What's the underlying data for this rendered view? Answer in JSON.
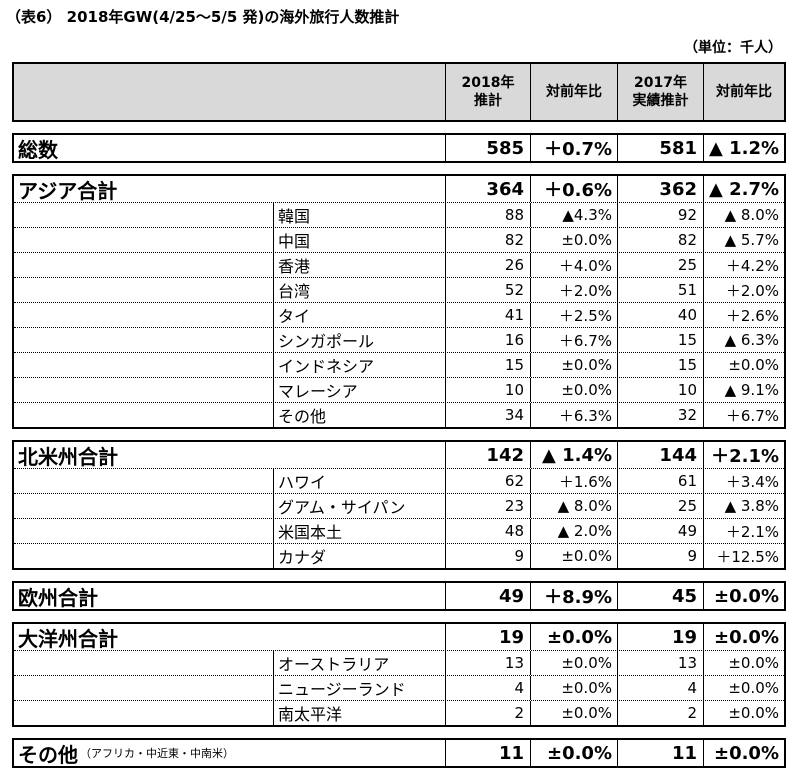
{
  "title": "（表6） 2018年GW(4/25～5/5 発)の海外旅行人数推計",
  "unit": "（単位：千人）",
  "header": {
    "c1": [
      "2018年",
      "推計"
    ],
    "c2": "対前年比",
    "c3": [
      "2017年",
      "実績推計"
    ],
    "c4": "対前年比"
  },
  "total": {
    "name": "総数",
    "v2018": "585",
    "yoy2018": "＋0.7%",
    "v2017": "581",
    "yoy2017": "▲ 1.2%"
  },
  "asia": {
    "name": "アジア合計",
    "v2018": "364",
    "yoy2018": "＋0.6%",
    "v2017": "362",
    "yoy2017": "▲ 2.7%",
    "items": [
      {
        "name": "韓国",
        "v2018": "88",
        "yoy2018": "▲4.3%",
        "v2017": "92",
        "yoy2017": "▲ 8.0%"
      },
      {
        "name": "中国",
        "v2018": "82",
        "yoy2018": "±0.0%",
        "v2017": "82",
        "yoy2017": "▲ 5.7%"
      },
      {
        "name": "香港",
        "v2018": "26",
        "yoy2018": "＋4.0%",
        "v2017": "25",
        "yoy2017": "＋4.2%"
      },
      {
        "name": "台湾",
        "v2018": "52",
        "yoy2018": "＋2.0%",
        "v2017": "51",
        "yoy2017": "＋2.0%"
      },
      {
        "name": "タイ",
        "v2018": "41",
        "yoy2018": "＋2.5%",
        "v2017": "40",
        "yoy2017": "＋2.6%"
      },
      {
        "name": "シンガポール",
        "v2018": "16",
        "yoy2018": "＋6.7%",
        "v2017": "15",
        "yoy2017": "▲ 6.3%"
      },
      {
        "name": "インドネシア",
        "v2018": "15",
        "yoy2018": "±0.0%",
        "v2017": "15",
        "yoy2017": "±0.0%"
      },
      {
        "name": "マレーシア",
        "v2018": "10",
        "yoy2018": "±0.0%",
        "v2017": "10",
        "yoy2017": "▲ 9.1%"
      },
      {
        "name": "その他",
        "v2018": "34",
        "yoy2018": "＋6.3%",
        "v2017": "32",
        "yoy2017": "＋6.7%"
      }
    ]
  },
  "north_america": {
    "name": "北米州合計",
    "v2018": "142",
    "yoy2018": "▲ 1.4%",
    "v2017": "144",
    "yoy2017": "＋2.1%",
    "items": [
      {
        "name": "ハワイ",
        "v2018": "62",
        "yoy2018": "＋1.6%",
        "v2017": "61",
        "yoy2017": "＋3.4%"
      },
      {
        "name": "グアム・サイパン",
        "v2018": "23",
        "yoy2018": "▲ 8.0%",
        "v2017": "25",
        "yoy2017": "▲ 3.8%"
      },
      {
        "name": "米国本土",
        "v2018": "48",
        "yoy2018": "▲ 2.0%",
        "v2017": "49",
        "yoy2017": "＋2.1%"
      },
      {
        "name": "カナダ",
        "v2018": "9",
        "yoy2018": "±0.0%",
        "v2017": "9",
        "yoy2017": "＋12.5%"
      }
    ]
  },
  "europe": {
    "name": "欧州合計",
    "v2018": "49",
    "yoy2018": "＋8.9%",
    "v2017": "45",
    "yoy2017": "±0.0%"
  },
  "oceania": {
    "name": "大洋州合計",
    "v2018": "19",
    "yoy2018": "±0.0%",
    "v2017": "19",
    "yoy2017": "±0.0%",
    "items": [
      {
        "name": "オーストラリア",
        "v2018": "13",
        "yoy2018": "±0.0%",
        "v2017": "13",
        "yoy2017": "±0.0%"
      },
      {
        "name": "ニュージーランド",
        "v2018": "4",
        "yoy2018": "±0.0%",
        "v2017": "4",
        "yoy2017": "±0.0%"
      },
      {
        "name": "南太平洋",
        "v2018": "2",
        "yoy2018": "±0.0%",
        "v2017": "2",
        "yoy2017": "±0.0%"
      }
    ]
  },
  "other": {
    "name": "その他",
    "note": "（アフリカ・中近東・中南米）",
    "v2018": "11",
    "yoy2018": "±0.0%",
    "v2017": "11",
    "yoy2017": "±0.0%"
  }
}
